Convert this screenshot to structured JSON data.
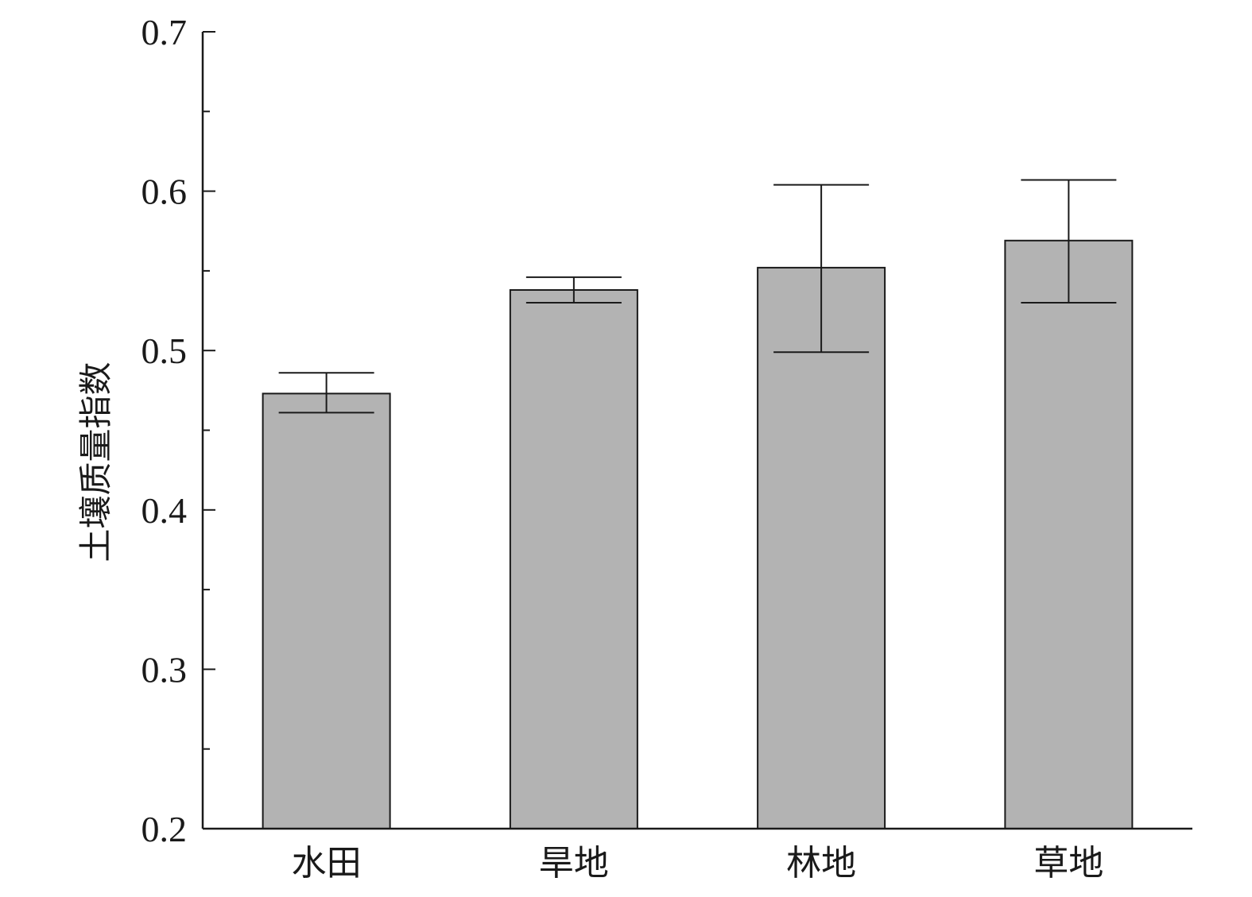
{
  "chart_data": {
    "type": "bar",
    "ylabel": "土壤质量指数",
    "xlabel": "",
    "categories": [
      "水田",
      "旱地",
      "林地",
      "草地"
    ],
    "values": [
      0.473,
      0.538,
      0.552,
      0.569
    ],
    "error_upper": [
      0.486,
      0.546,
      0.604,
      0.607
    ],
    "error_lower": [
      0.461,
      0.53,
      0.499,
      0.53
    ],
    "error_cap_upper": [
      0.486,
      0.546,
      0.604,
      0.607
    ],
    "error_cap_lower": [
      0.461,
      0.53,
      0.499,
      0.53
    ],
    "ylim": [
      0.2,
      0.7
    ],
    "yticks": [
      0.2,
      0.3,
      0.4,
      0.5,
      0.6,
      0.7
    ],
    "ytick_labels": [
      "0.2",
      "0.3",
      "0.4",
      "0.5",
      "0.6",
      "0.7"
    ],
    "minor_yticks": [
      0.25,
      0.35,
      0.45,
      0.55,
      0.65
    ],
    "grid": false,
    "bar_color": "#b3b3b3",
    "line_color": "#1a1a1a"
  }
}
